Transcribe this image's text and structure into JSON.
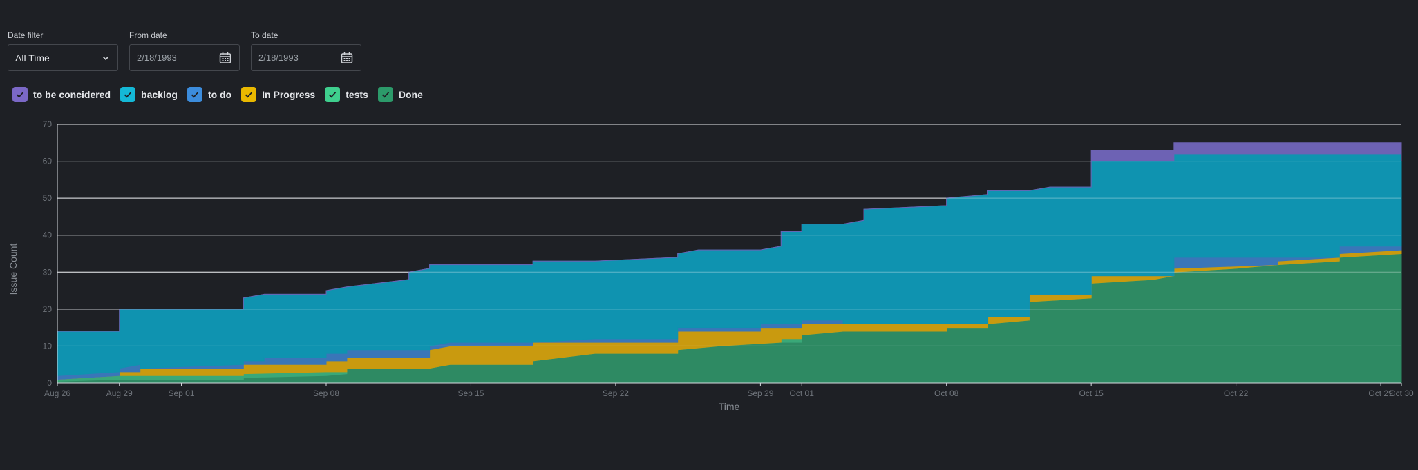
{
  "filters": {
    "date_filter": {
      "label": "Date filter",
      "value": "All Time"
    },
    "from_date": {
      "label": "From date",
      "value": "2/18/1993"
    },
    "to_date": {
      "label": "To date",
      "value": "2/18/1993"
    }
  },
  "legend": [
    {
      "name": "to be concidered",
      "color": "#7b68c6"
    },
    {
      "name": "backlog",
      "color": "#14b8d6"
    },
    {
      "name": "to do",
      "color": "#3c8cdc"
    },
    {
      "name": "In Progress",
      "color": "#e9b800"
    },
    {
      "name": "tests",
      "color": "#3fcf8e"
    },
    {
      "name": "Done",
      "color": "#2c9a6a"
    }
  ],
  "chart_data": {
    "type": "area",
    "stacked": true,
    "xlabel": "Time",
    "ylabel": "Issue Count",
    "ylim": [
      0,
      70
    ],
    "yticks": [
      0,
      10,
      20,
      30,
      40,
      50,
      60,
      70
    ],
    "xlim": [
      "2024-08-26",
      "2024-10-30"
    ],
    "xticks": [
      {
        "date": "2024-08-26",
        "label": "Aug 26"
      },
      {
        "date": "2024-08-29",
        "label": "Aug 29"
      },
      {
        "date": "2024-09-01",
        "label": "Sep 01"
      },
      {
        "date": "2024-09-08",
        "label": "Sep 08"
      },
      {
        "date": "2024-09-15",
        "label": "Sep 15"
      },
      {
        "date": "2024-09-22",
        "label": "Sep 22"
      },
      {
        "date": "2024-09-29",
        "label": "Sep 29"
      },
      {
        "date": "2024-10-01",
        "label": "Oct 01"
      },
      {
        "date": "2024-10-08",
        "label": "Oct 08"
      },
      {
        "date": "2024-10-15",
        "label": "Oct 15"
      },
      {
        "date": "2024-10-22",
        "label": "Oct 22"
      },
      {
        "date": "2024-10-29",
        "label": "Oct 29"
      },
      {
        "date": "2024-10-30",
        "label": "Oct 30"
      }
    ],
    "grid": true,
    "series_order": "bottom-to-top",
    "cumulative": [
      {
        "name": "Done",
        "color": "#2e8a63",
        "points": [
          [
            "2024-08-26",
            0.5
          ],
          [
            "2024-08-29",
            1
          ],
          [
            "2024-09-04",
            1
          ],
          [
            "2024-09-04",
            1.5
          ],
          [
            "2024-09-08",
            2
          ],
          [
            "2024-09-09",
            2.5
          ],
          [
            "2024-09-09",
            3
          ],
          [
            "2024-09-09",
            4
          ],
          [
            "2024-09-13",
            4
          ],
          [
            "2024-09-14",
            5
          ],
          [
            "2024-09-18",
            5
          ],
          [
            "2024-09-18",
            6
          ],
          [
            "2024-09-21",
            8
          ],
          [
            "2024-09-25",
            8
          ],
          [
            "2024-09-25",
            9
          ],
          [
            "2024-09-27",
            10
          ],
          [
            "2024-09-30",
            11
          ],
          [
            "2024-10-01",
            11
          ],
          [
            "2024-10-01",
            13
          ],
          [
            "2024-10-03",
            14
          ],
          [
            "2024-10-08",
            14
          ],
          [
            "2024-10-08",
            15
          ],
          [
            "2024-10-10",
            15
          ],
          [
            "2024-10-10",
            16
          ],
          [
            "2024-10-12",
            17
          ],
          [
            "2024-10-12",
            21
          ],
          [
            "2024-10-12",
            22
          ],
          [
            "2024-10-15",
            23
          ],
          [
            "2024-10-15",
            27
          ],
          [
            "2024-10-18",
            28
          ],
          [
            "2024-10-19",
            29
          ],
          [
            "2024-10-19",
            30
          ],
          [
            "2024-10-22",
            31
          ],
          [
            "2024-10-24",
            32
          ],
          [
            "2024-10-27",
            33
          ],
          [
            "2024-10-27",
            34
          ],
          [
            "2024-10-30",
            35
          ],
          [
            "2024-10-30",
            37
          ]
        ]
      },
      {
        "name": "tests",
        "color": "#3aa878",
        "points": [
          [
            "2024-08-26",
            1
          ],
          [
            "2024-08-29",
            2
          ],
          [
            "2024-08-31",
            2
          ],
          [
            "2024-09-04",
            2
          ],
          [
            "2024-09-04",
            2.5
          ],
          [
            "2024-09-08",
            3
          ],
          [
            "2024-09-09",
            3
          ],
          [
            "2024-09-09",
            4
          ],
          [
            "2024-09-13",
            4
          ],
          [
            "2024-09-14",
            5
          ],
          [
            "2024-09-18",
            5
          ],
          [
            "2024-09-18",
            6
          ],
          [
            "2024-09-21",
            8
          ],
          [
            "2024-09-25",
            8
          ],
          [
            "2024-09-25",
            9
          ],
          [
            "2024-09-27",
            10
          ],
          [
            "2024-09-30",
            11
          ],
          [
            "2024-09-30",
            12
          ],
          [
            "2024-10-01",
            12
          ],
          [
            "2024-10-01",
            13
          ],
          [
            "2024-10-03",
            14
          ],
          [
            "2024-10-08",
            14
          ],
          [
            "2024-10-08",
            15
          ],
          [
            "2024-10-10",
            15
          ],
          [
            "2024-10-10",
            16
          ],
          [
            "2024-10-12",
            17
          ],
          [
            "2024-10-12",
            21
          ],
          [
            "2024-10-12",
            22
          ],
          [
            "2024-10-15",
            23
          ],
          [
            "2024-10-15",
            27
          ],
          [
            "2024-10-18",
            28
          ],
          [
            "2024-10-19",
            29
          ],
          [
            "2024-10-19",
            30
          ],
          [
            "2024-10-22",
            31
          ],
          [
            "2024-10-24",
            32
          ],
          [
            "2024-10-27",
            33
          ],
          [
            "2024-10-27",
            34
          ],
          [
            "2024-10-30",
            35
          ],
          [
            "2024-10-30",
            37
          ]
        ]
      },
      {
        "name": "In Progress",
        "color": "#c99a0f",
        "points": [
          [
            "2024-08-26",
            1
          ],
          [
            "2024-08-29",
            2
          ],
          [
            "2024-08-29",
            3
          ],
          [
            "2024-08-30",
            3
          ],
          [
            "2024-08-30",
            4
          ],
          [
            "2024-09-04",
            4
          ],
          [
            "2024-09-04",
            5
          ],
          [
            "2024-09-08",
            5
          ],
          [
            "2024-09-08",
            6
          ],
          [
            "2024-09-09",
            6
          ],
          [
            "2024-09-09",
            7
          ],
          [
            "2024-09-13",
            7
          ],
          [
            "2024-09-13",
            9
          ],
          [
            "2024-09-14",
            10
          ],
          [
            "2024-09-18",
            10
          ],
          [
            "2024-09-18",
            11
          ],
          [
            "2024-09-25",
            11
          ],
          [
            "2024-09-25",
            12
          ],
          [
            "2024-09-25",
            14
          ],
          [
            "2024-09-29",
            14
          ],
          [
            "2024-09-29",
            15
          ],
          [
            "2024-10-01",
            15
          ],
          [
            "2024-10-01",
            16
          ],
          [
            "2024-10-03",
            16
          ],
          [
            "2024-10-08",
            16
          ],
          [
            "2024-10-10",
            16
          ],
          [
            "2024-10-10",
            18
          ],
          [
            "2024-10-12",
            18
          ],
          [
            "2024-10-12",
            23
          ],
          [
            "2024-10-12",
            24
          ],
          [
            "2024-10-15",
            24
          ],
          [
            "2024-10-15",
            29
          ],
          [
            "2024-10-19",
            29
          ],
          [
            "2024-10-19",
            31
          ],
          [
            "2024-10-19",
            31
          ],
          [
            "2024-10-24",
            32
          ],
          [
            "2024-10-24",
            33
          ],
          [
            "2024-10-27",
            34
          ],
          [
            "2024-10-27",
            35
          ],
          [
            "2024-10-30",
            36
          ],
          [
            "2024-10-30",
            38
          ]
        ]
      },
      {
        "name": "to do",
        "color": "#3a76b8",
        "points": [
          [
            "2024-08-26",
            2
          ],
          [
            "2024-08-29",
            3
          ],
          [
            "2024-08-29",
            4
          ],
          [
            "2024-08-30",
            5
          ],
          [
            "2024-08-30",
            4
          ],
          [
            "2024-09-04",
            5
          ],
          [
            "2024-09-04",
            6
          ],
          [
            "2024-09-05",
            6
          ],
          [
            "2024-09-05",
            7
          ],
          [
            "2024-09-08",
            7
          ],
          [
            "2024-09-08",
            8
          ],
          [
            "2024-09-09",
            8
          ],
          [
            "2024-09-09",
            9
          ],
          [
            "2024-09-13",
            9
          ],
          [
            "2024-09-13",
            10
          ],
          [
            "2024-09-14",
            11
          ],
          [
            "2024-09-18",
            11
          ],
          [
            "2024-09-18",
            11
          ],
          [
            "2024-09-21",
            12
          ],
          [
            "2024-09-25",
            12
          ],
          [
            "2024-09-25",
            15
          ],
          [
            "2024-09-29",
            15
          ],
          [
            "2024-09-29",
            16
          ],
          [
            "2024-10-01",
            16
          ],
          [
            "2024-10-01",
            17
          ],
          [
            "2024-10-03",
            17
          ],
          [
            "2024-10-03",
            16
          ],
          [
            "2024-10-10",
            16
          ],
          [
            "2024-10-10",
            18
          ],
          [
            "2024-10-12",
            18
          ],
          [
            "2024-10-12",
            24
          ],
          [
            "2024-10-15",
            24
          ],
          [
            "2024-10-15",
            29
          ],
          [
            "2024-10-19",
            29
          ],
          [
            "2024-10-19",
            34
          ],
          [
            "2024-10-24",
            34
          ],
          [
            "2024-10-24",
            34
          ],
          [
            "2024-10-27",
            34
          ],
          [
            "2024-10-27",
            37
          ],
          [
            "2024-10-30",
            37
          ],
          [
            "2024-10-30",
            38
          ]
        ]
      },
      {
        "name": "backlog",
        "color": "#0f93b0",
        "points": [
          [
            "2024-08-26",
            14
          ],
          [
            "2024-08-29",
            14
          ],
          [
            "2024-08-29",
            20
          ],
          [
            "2024-09-04",
            20
          ],
          [
            "2024-09-04",
            23
          ],
          [
            "2024-09-05",
            24
          ],
          [
            "2024-09-08",
            24
          ],
          [
            "2024-09-08",
            25
          ],
          [
            "2024-09-09",
            26
          ],
          [
            "2024-09-12",
            28
          ],
          [
            "2024-09-12",
            30
          ],
          [
            "2024-09-13",
            31
          ],
          [
            "2024-09-13",
            32
          ],
          [
            "2024-09-18",
            32
          ],
          [
            "2024-09-18",
            33
          ],
          [
            "2024-09-21",
            33
          ],
          [
            "2024-09-25",
            34
          ],
          [
            "2024-09-25",
            35
          ],
          [
            "2024-09-26",
            36
          ],
          [
            "2024-09-29",
            36
          ],
          [
            "2024-09-30",
            37
          ],
          [
            "2024-09-30",
            40
          ],
          [
            "2024-09-30",
            41
          ],
          [
            "2024-10-01",
            41
          ],
          [
            "2024-10-01",
            43
          ],
          [
            "2024-10-03",
            43
          ],
          [
            "2024-10-04",
            44
          ],
          [
            "2024-10-04",
            47
          ],
          [
            "2024-10-08",
            48
          ],
          [
            "2024-10-08",
            50
          ],
          [
            "2024-10-10",
            51
          ],
          [
            "2024-10-10",
            52
          ],
          [
            "2024-10-12",
            52
          ],
          [
            "2024-10-13",
            53
          ],
          [
            "2024-10-15",
            53
          ],
          [
            "2024-10-15",
            60
          ],
          [
            "2024-10-19",
            60
          ],
          [
            "2024-10-19",
            62
          ],
          [
            "2024-10-30",
            62
          ],
          [
            "2024-10-30",
            60
          ]
        ]
      },
      {
        "name": "to be concidered",
        "color": "#6d62b4",
        "points": [
          [
            "2024-08-26",
            14
          ],
          [
            "2024-08-29",
            14
          ],
          [
            "2024-08-29",
            20
          ],
          [
            "2024-09-04",
            20
          ],
          [
            "2024-09-04",
            23
          ],
          [
            "2024-09-05",
            24
          ],
          [
            "2024-09-08",
            24
          ],
          [
            "2024-09-08",
            25
          ],
          [
            "2024-09-09",
            26
          ],
          [
            "2024-09-12",
            28
          ],
          [
            "2024-09-12",
            30
          ],
          [
            "2024-09-13",
            31
          ],
          [
            "2024-09-13",
            32
          ],
          [
            "2024-09-18",
            32
          ],
          [
            "2024-09-18",
            33
          ],
          [
            "2024-09-21",
            33
          ],
          [
            "2024-09-25",
            34
          ],
          [
            "2024-09-25",
            35
          ],
          [
            "2024-09-26",
            36
          ],
          [
            "2024-09-29",
            36
          ],
          [
            "2024-09-30",
            37
          ],
          [
            "2024-09-30",
            40
          ],
          [
            "2024-09-30",
            41
          ],
          [
            "2024-10-01",
            41
          ],
          [
            "2024-10-01",
            43
          ],
          [
            "2024-10-03",
            43
          ],
          [
            "2024-10-04",
            44
          ],
          [
            "2024-10-04",
            47
          ],
          [
            "2024-10-08",
            48
          ],
          [
            "2024-10-08",
            50
          ],
          [
            "2024-10-10",
            51
          ],
          [
            "2024-10-10",
            52
          ],
          [
            "2024-10-12",
            52
          ],
          [
            "2024-10-13",
            53
          ],
          [
            "2024-10-15",
            53
          ],
          [
            "2024-10-15",
            63
          ],
          [
            "2024-10-19",
            63
          ],
          [
            "2024-10-19",
            65
          ],
          [
            "2024-10-30",
            65
          ]
        ]
      }
    ]
  }
}
